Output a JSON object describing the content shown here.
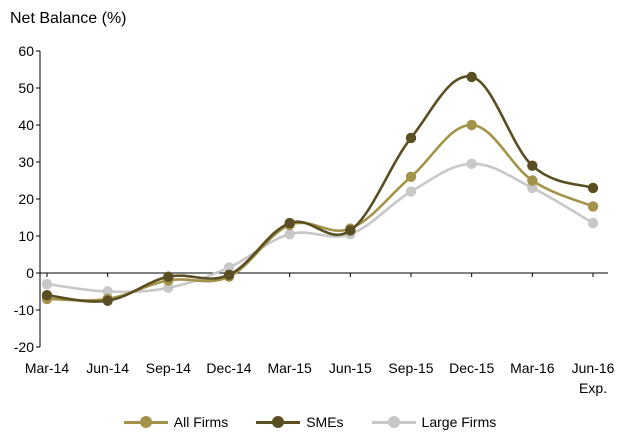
{
  "chart_data": {
    "type": "line",
    "ylabel": "Net Balance (%)",
    "categories": [
      "Mar-14",
      "Jun-14",
      "Sep-14",
      "Dec-14",
      "Mar-15",
      "Jun-15",
      "Sep-15",
      "Dec-15",
      "Mar-16",
      "Jun-16"
    ],
    "category_sublabels": [
      "",
      "",
      "",
      "",
      "",
      "",
      "",
      "",
      "",
      "Exp."
    ],
    "ylim": [
      -20,
      60
    ],
    "yticks": [
      "-20",
      "-10",
      "0",
      "10",
      "20",
      "30",
      "40",
      "50",
      "60"
    ],
    "grid": false,
    "legend_position": "bottom",
    "series": [
      {
        "name": "All Firms",
        "color": "#A3924A",
        "values": [
          -7,
          -7,
          -2,
          -1,
          13,
          12,
          26,
          40,
          25,
          18
        ]
      },
      {
        "name": "SMEs",
        "color": "#5A4F22",
        "values": [
          -6,
          -7.5,
          -1,
          -0.5,
          13.5,
          11.5,
          36.5,
          53,
          29,
          23
        ]
      },
      {
        "name": "Large Firms",
        "color": "#C8C8C8",
        "values": [
          -3,
          -5,
          -4,
          1.5,
          10.5,
          10.5,
          22,
          29.5,
          23,
          13.5
        ]
      }
    ]
  }
}
